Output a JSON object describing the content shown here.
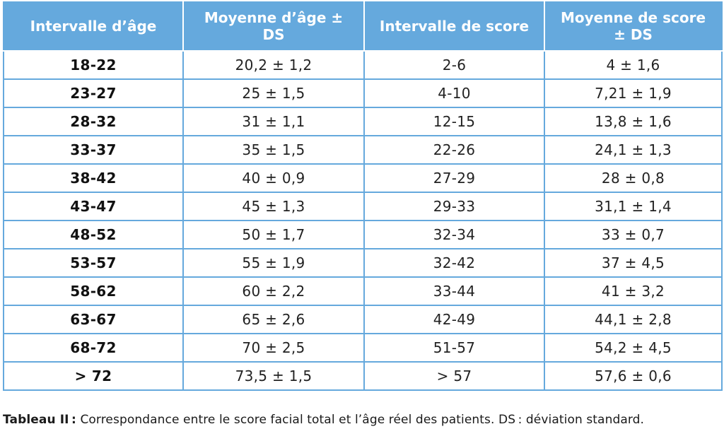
{
  "table": {
    "headers": [
      "Intervalle d’âge",
      "Moyenne d’âge ± DS",
      "Intervalle de score",
      "Moyenne de score ± DS"
    ],
    "rows": [
      [
        "18-22",
        "20,2 ± 1,2",
        "2-6",
        "4 ± 1,6"
      ],
      [
        "23-27",
        "25 ± 1,5",
        "4-10",
        "7,21 ± 1,9"
      ],
      [
        "28-32",
        "31 ± 1,1",
        "12-15",
        "13,8 ± 1,6"
      ],
      [
        "33-37",
        "35 ± 1,5",
        "22-26",
        "24,1 ± 1,3"
      ],
      [
        "38-42",
        "40 ± 0,9",
        "27-29",
        "28 ± 0,8"
      ],
      [
        "43-47",
        "45 ± 1,3",
        "29-33",
        "31,1 ± 1,4"
      ],
      [
        "48-52",
        "50 ± 1,7",
        "32-34",
        "33 ± 0,7"
      ],
      [
        "53-57",
        "55 ± 1,9",
        "32-42",
        "37 ± 4,5"
      ],
      [
        "58-62",
        "60 ± 2,2",
        "33-44",
        "41 ± 3,2"
      ],
      [
        "63-67",
        "65 ± 2,6",
        "42-49",
        "44,1 ± 2,8"
      ],
      [
        "68-72",
        "70 ± 2,5",
        "51-57",
        "54,2 ± 4,5"
      ],
      [
        "> 72",
        "73,5 ± 1,5",
        "> 57",
        "57,6 ± 0,6"
      ]
    ]
  },
  "caption": {
    "label": "Tableau II :",
    "text": " Correspondance entre le score facial total et l’âge réel des patients. DS : déviation standard."
  },
  "colors": {
    "header_background": "#65a9dd",
    "header_text": "#ffffff",
    "grid_lines": "#65a9dd"
  }
}
